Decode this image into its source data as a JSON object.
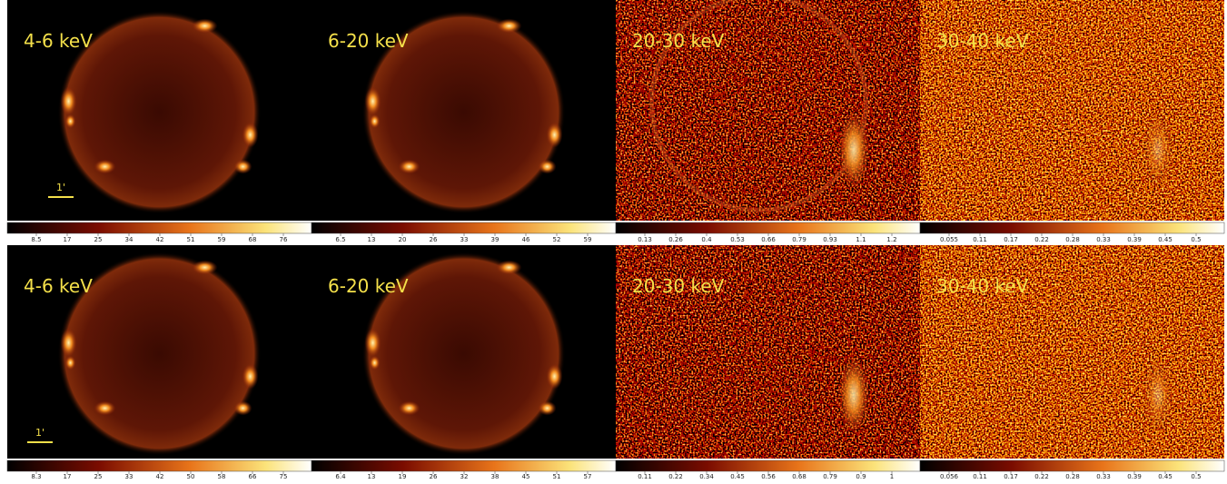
{
  "rows": [
    {
      "panels": [
        {
          "label": "4-6 keV",
          "scale_bar": "1'",
          "colorbar_ticks": [
            "8.5",
            "17",
            "25",
            "34",
            "42",
            "51",
            "59",
            "68",
            "76"
          ]
        },
        {
          "label": "6-20 keV",
          "colorbar_ticks": [
            "6.5",
            "13",
            "20",
            "26",
            "33",
            "39",
            "46",
            "52",
            "59"
          ]
        },
        {
          "label": "20-30 keV",
          "colorbar_ticks": [
            "0.13",
            "0.26",
            "0.4",
            "0.53",
            "0.66",
            "0.79",
            "0.93",
            "1.1",
            "1.2"
          ]
        },
        {
          "label": "30-40 keV",
          "colorbar_ticks": [
            "0.055",
            "0.11",
            "0.17",
            "0.22",
            "0.28",
            "0.33",
            "0.39",
            "0.45",
            "0.5"
          ]
        }
      ]
    },
    {
      "panels": [
        {
          "label": "4-6 keV",
          "scale_bar": "1'",
          "colorbar_ticks": [
            "8.3",
            "17",
            "25",
            "33",
            "42",
            "50",
            "58",
            "66",
            "75"
          ]
        },
        {
          "label": "6-20 keV",
          "colorbar_ticks": [
            "6.4",
            "13",
            "19",
            "26",
            "32",
            "38",
            "45",
            "51",
            "57"
          ]
        },
        {
          "label": "20-30 keV",
          "colorbar_ticks": [
            "0.11",
            "0.22",
            "0.34",
            "0.45",
            "0.56",
            "0.68",
            "0.79",
            "0.9",
            "1"
          ]
        },
        {
          "label": "30-40 keV",
          "colorbar_ticks": [
            "0.056",
            "0.11",
            "0.17",
            "0.22",
            "0.28",
            "0.33",
            "0.39",
            "0.45",
            "0.5"
          ]
        }
      ]
    }
  ]
}
